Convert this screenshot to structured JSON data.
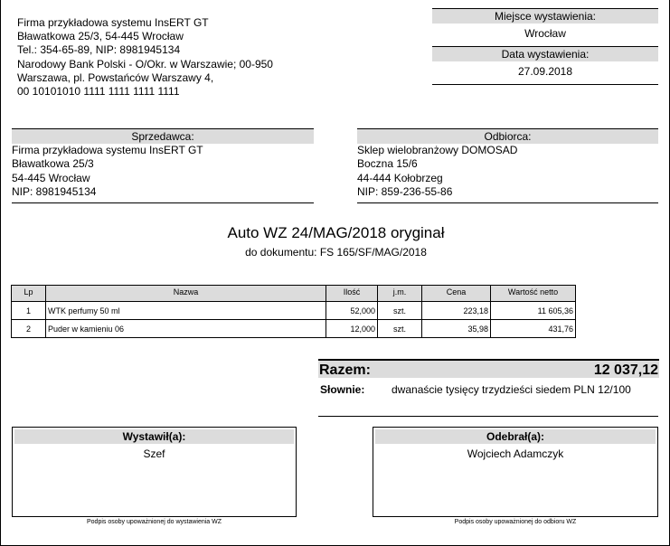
{
  "issuer": {
    "lines": [
      "Firma przykładowa systemu InsERT GT",
      "Bławatkowa 25/3, 54-445 Wrocław",
      "Tel.: 354-65-89, NIP: 8981945134",
      "Narodowy Bank Polski  - O/Okr. w Warszawie; 00-950",
      "Warszawa, pl. Powstańców Warszawy 4,",
      "00 10101010 1111 1111 1111 1111"
    ]
  },
  "place": {
    "label": "Miejsce wystawienia:",
    "value": "Wrocław"
  },
  "date": {
    "label": "Data wystawienia:",
    "value": "27.09.2018"
  },
  "seller": {
    "label": "Sprzedawca:",
    "lines": [
      "Firma przykładowa systemu InsERT GT",
      "Bławatkowa 25/3",
      "54-445 Wrocław",
      "NIP: 8981945134"
    ]
  },
  "buyer": {
    "label": "Odbiorca:",
    "lines": [
      "Sklep wielobranżowy DOMOSAD",
      "Boczna  15/6",
      "44-444 Kołobrzeg",
      "NIP: 859-236-55-86"
    ]
  },
  "doc": {
    "title": "Auto WZ  24/MAG/2018 oryginał",
    "subtitle": "do dokumentu: FS 165/SF/MAG/2018"
  },
  "table": {
    "headers": [
      "Lp",
      "Nazwa",
      "Ilość",
      "j.m.",
      "Cena",
      "Wartość netto"
    ],
    "rows": [
      [
        "1",
        "WTK perfumy 50 ml",
        "52,000",
        "szt.",
        "223,18",
        "11 605,36"
      ],
      [
        "2",
        "Puder w kamieniu 06",
        "12,000",
        "szt.",
        "35,98",
        "431,76"
      ]
    ]
  },
  "totals": {
    "label": "Razem:",
    "value": "12 037,12",
    "words_label": "Słownie:",
    "words": "dwanaście tysięcy trzydzieści siedem  PLN 12/100"
  },
  "signatures": [
    {
      "label": "Wystawił(a):",
      "name": "Szef",
      "caption": "Podpis osoby upoważnionej do wystawienia WZ"
    },
    {
      "label": "Odebrał(a):",
      "name": "Wojciech Adamczyk",
      "caption": "Podpis osoby upoważnionej do odbioru WZ"
    }
  ]
}
